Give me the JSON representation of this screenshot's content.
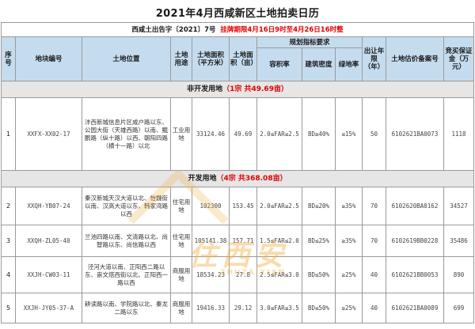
{
  "title": "2021年4月西咸新区土地拍卖日历",
  "notice": {
    "label": "西咸土出告字〔2021〕7号",
    "period": "挂牌期限4月16日9时至4月26日16时整"
  },
  "headers": {
    "seq": "序号",
    "parcel": "地块编号",
    "location": "土地位置",
    "use": "土地用途",
    "area_sqm": "土地面积（平方米）",
    "area_mu": "土地面积（亩）",
    "planning": "规划指标要求",
    "far": "容积率",
    "density": "建筑密度",
    "green": "绿地率",
    "years": "出让年限（年）",
    "valuation": "土地估价备案号",
    "deposit": "竞买保证金（万元）"
  },
  "sections": [
    {
      "name": "非开发用地",
      "summary": "（1宗 共49.69亩）",
      "rows": [
        {
          "seq": "1",
          "parcel": "XXFX-XX02-17",
          "location": "沣西新城信息片区咸户路以东、公园大街（天雄西路）以南、鲲鹏路（纵十路）以西、朝阳四路（横十一路）以北",
          "use": "工业用地",
          "area_sqm": "33124.46",
          "area_mu": "49.69",
          "far": "2.0≤FAR≤2.5",
          "density": "BD≥40%",
          "green": "≤15%",
          "years": "50",
          "valuation": "6102621BA0073",
          "deposit": "1118"
        }
      ]
    },
    {
      "name": "开发用地",
      "summary": "（4宗 共368.08亩）",
      "rows": [
        {
          "seq": "2",
          "parcel": "XXQH-YB07-24",
          "location": "秦汉新城天汉大道以北、怡魏街以南、汉高大道以东、韩家湾路以西",
          "use": "住宅用地",
          "area_sqm": "102300",
          "area_mu": "153.45",
          "far": "2.0≤FAR≤2.5",
          "density": "BD≤20%",
          "green": "≥35%",
          "years": "70",
          "valuation": "6102620BA0162",
          "deposit": "34527"
        },
        {
          "seq": "3",
          "parcel": "XXQH-ZL05-40",
          "location": "兰池四路以南、文清路以北、尚智路以东、尚信路以西",
          "use": "住宅用地",
          "area_sqm": "105141.38",
          "area_mu": "157.71",
          "far": "1.5≤FAR≤2.0",
          "density": "BD≤25%",
          "green": "≥35%",
          "years": "70",
          "valuation": "6102619BB0228",
          "deposit": "35486"
        },
        {
          "seq": "4",
          "parcel": "XXJH-CW03-11",
          "location": "泾河大道以南、正阳西二路以东、崇文塔西街以北、正阳西一路以西",
          "use": "商服用地",
          "area_sqm": "18534.23",
          "area_mu": "27.8",
          "far": "2.5≤FAR≤3.0",
          "density": "BD≤50%",
          "green": "≥25%",
          "years": "40",
          "valuation": "6102621BB0053",
          "deposit": "890"
        },
        {
          "seq": "5",
          "parcel": "XXJH-JY05-37-A",
          "location": "耕读路以南、学院路以北、秦龙二路以东",
          "use": "商服用地",
          "area_sqm": "19416.33",
          "area_mu": "29.12",
          "far": "3.0≤FAR≤3.5",
          "density": "BD≤50%",
          "green": "≥25%",
          "years": "40",
          "valuation": "6102621BA0089",
          "deposit": "699"
        }
      ]
    }
  ],
  "watermark": {
    "text": "住西安",
    "subtext": "ZHUZAIXIAN",
    "color": "#f3b24a"
  }
}
